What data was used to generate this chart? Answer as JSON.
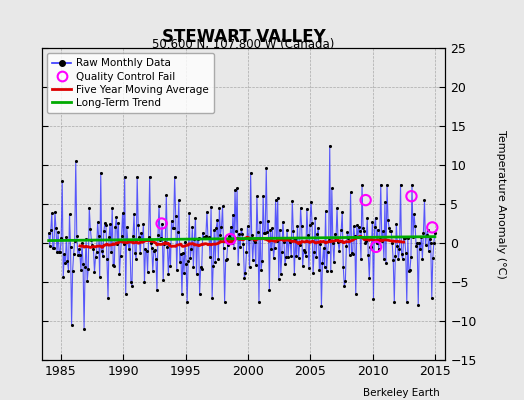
{
  "title": "STEWART VALLEY",
  "subtitle": "50.600 N, 107.800 W (Canada)",
  "ylabel": "Temperature Anomaly (°C)",
  "credit": "Berkeley Earth",
  "xlim": [
    1983.5,
    2015.8
  ],
  "ylim": [
    -15,
    25
  ],
  "yticks": [
    -15,
    -10,
    -5,
    0,
    5,
    10,
    15,
    20,
    25
  ],
  "xticks": [
    1985,
    1990,
    1995,
    2000,
    2005,
    2010,
    2015
  ],
  "fig_bg": "#e8e8e8",
  "plot_bg": "#e8e8e8",
  "line_color": "#3333ff",
  "dot_color": "#000000",
  "moving_avg_color": "#dd0000",
  "trend_color": "#00aa00",
  "qc_fail_color": "#ff00ff",
  "seed": 42,
  "start_year": 1984,
  "end_year": 2014
}
